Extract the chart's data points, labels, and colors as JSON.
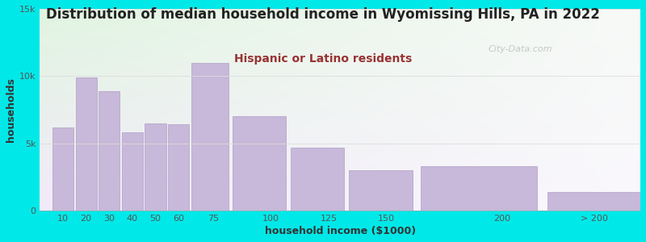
{
  "title": "Distribution of median household income in Wyomissing Hills, PA in 2022",
  "subtitle": "Hispanic or Latino residents",
  "xlabel": "household income ($1000)",
  "ylabel": "households",
  "bar_labels": [
    "10",
    "20",
    "30",
    "40",
    "50",
    "60",
    "75",
    "100",
    "125",
    "150",
    "200",
    "> 200"
  ],
  "bar_left_edges": [
    5,
    15,
    25,
    35,
    45,
    55,
    65,
    82.5,
    107.5,
    132.5,
    162.5,
    217.5
  ],
  "bar_widths": [
    10,
    10,
    10,
    10,
    10,
    10,
    17.5,
    25,
    25,
    30,
    55,
    55
  ],
  "bar_values": [
    6200,
    9900,
    8900,
    5800,
    6500,
    6400,
    11000,
    7000,
    4700,
    3000,
    3300,
    1400
  ],
  "bar_color": "#c8b8d9",
  "bar_edge_color": "#b0a0c8",
  "xlim": [
    0,
    260
  ],
  "ylim": [
    0,
    15000
  ],
  "yticks": [
    0,
    5000,
    10000,
    15000
  ],
  "ytick_labels": [
    "0",
    "5k",
    "10k",
    "15k"
  ],
  "xtick_positions": [
    10,
    20,
    30,
    40,
    50,
    60,
    75,
    100,
    125,
    150,
    200
  ],
  "xtick_labels_main": [
    "10",
    "20",
    "30",
    "40",
    "50",
    "60",
    "75",
    "100",
    "125",
    "150",
    "200"
  ],
  "xtick_extra_pos": 240,
  "xtick_extra_label": "> 200",
  "background_outer": "#00e8e8",
  "title_color": "#222222",
  "subtitle_color": "#993333",
  "axis_tick_color": "#555555",
  "axis_label_color": "#333333",
  "title_fontsize": 12,
  "subtitle_fontsize": 10,
  "axis_label_fontsize": 9,
  "tick_fontsize": 8,
  "watermark_text": "City-Data.com",
  "watermark_color": "#bbbbbb"
}
